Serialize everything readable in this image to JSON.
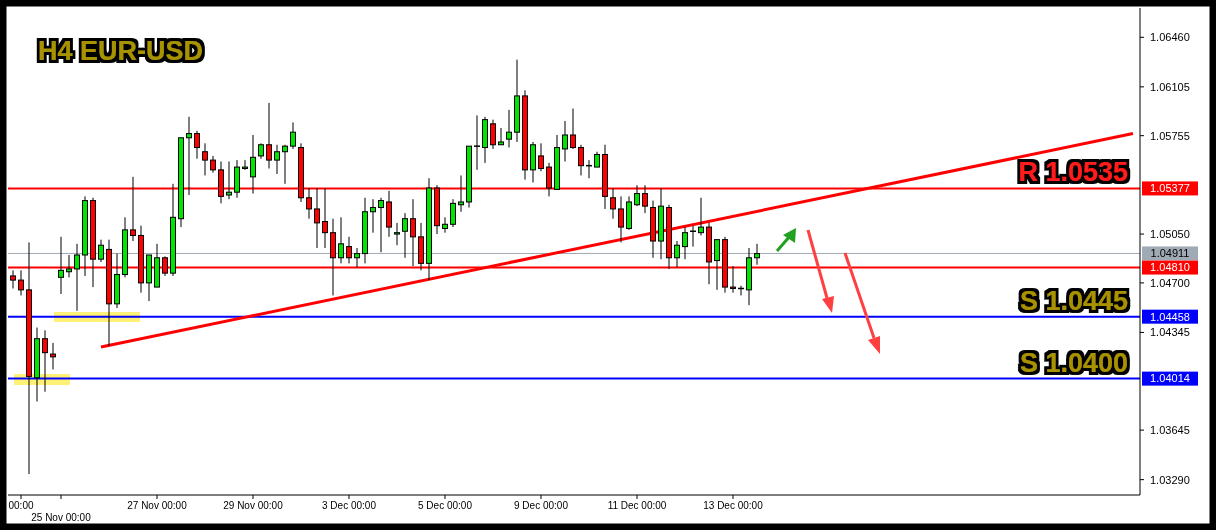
{
  "chart_data": {
    "type": "candlestick",
    "title": "H4 EUR-USD",
    "categories": [
      null,
      "00:00",
      null,
      null,
      null,
      null,
      "25 Nov 00:00",
      null,
      null,
      null,
      null,
      null,
      null,
      null,
      null,
      null,
      null,
      null,
      "27 Nov 00:00",
      null,
      null,
      null,
      null,
      null,
      null,
      null,
      null,
      null,
      null,
      null,
      "29 Nov 00:00",
      null,
      null,
      null,
      null,
      null,
      null,
      null,
      null,
      null,
      null,
      null,
      "3 Dec 00:00",
      null,
      null,
      null,
      null,
      null,
      null,
      null,
      null,
      null,
      null,
      null,
      "5 Dec 00:00",
      null,
      null,
      null,
      null,
      null,
      null,
      null,
      null,
      null,
      null,
      null,
      "9 Dec 00:00",
      null,
      null,
      null,
      null,
      null,
      null,
      null,
      null,
      null,
      null,
      null,
      "11 Dec 00:00",
      null,
      null,
      null,
      null,
      null,
      null,
      null,
      null,
      null,
      null,
      null,
      "13 Dec 00:00",
      null,
      null,
      null,
      null,
      null,
      null,
      null,
      null,
      null,
      null,
      null,
      null,
      null,
      null,
      null,
      null,
      null,
      null,
      null,
      null,
      null,
      null,
      null,
      null,
      null,
      null,
      null,
      null,
      null,
      null,
      null,
      null,
      null,
      null,
      null,
      null,
      null,
      null,
      null,
      null,
      null,
      null,
      null,
      null,
      null,
      null,
      null,
      null,
      null,
      null
    ],
    "ohlc": [
      [
        1.0475,
        1.0479,
        1.0466,
        1.0472
      ],
      [
        1.0472,
        1.0479,
        1.0461,
        1.0465
      ],
      [
        1.0465,
        1.0499,
        1.0333,
        1.0403
      ],
      [
        1.0402,
        1.0438,
        1.0385,
        1.043
      ],
      [
        1.043,
        1.0436,
        1.0392,
        1.042
      ],
      [
        1.0419,
        1.0427,
        1.0408,
        1.0417
      ],
      [
        1.0474,
        1.0503,
        1.0462,
        1.0479
      ],
      [
        1.0478,
        1.049,
        1.0474,
        1.048
      ],
      [
        1.048,
        1.0498,
        1.045,
        1.049
      ],
      [
        1.049,
        1.0532,
        1.0475,
        1.0529
      ],
      [
        1.0529,
        1.0531,
        1.0467,
        1.0487
      ],
      [
        1.0487,
        1.0501,
        1.0485,
        1.0497
      ],
      [
        1.0494,
        1.0501,
        1.0425,
        1.0455
      ],
      [
        1.0455,
        1.0491,
        1.0452,
        1.0476
      ],
      [
        1.0476,
        1.0517,
        1.0474,
        1.0508
      ],
      [
        1.0508,
        1.0546,
        1.05,
        1.0504
      ],
      [
        1.0504,
        1.0511,
        1.0463,
        1.047
      ],
      [
        1.047,
        1.049,
        1.0457,
        1.049
      ],
      [
        1.0467,
        1.0498,
        1.0467,
        1.0488
      ],
      [
        1.0488,
        1.0489,
        1.0475,
        1.0477
      ],
      [
        1.0477,
        1.0541,
        1.0475,
        1.0517
      ],
      [
        1.0516,
        1.0574,
        1.051,
        1.0574
      ],
      [
        1.0574,
        1.0589,
        1.0533,
        1.0577
      ],
      [
        1.0577,
        1.0579,
        1.0559,
        1.0567
      ],
      [
        1.0564,
        1.057,
        1.0547,
        1.0558
      ],
      [
        1.0558,
        1.0561,
        1.0549,
        1.0551
      ],
      [
        1.0551,
        1.0557,
        1.0527,
        1.0532
      ],
      [
        1.0533,
        1.0557,
        1.053,
        1.0535
      ],
      [
        1.0535,
        1.0558,
        1.0531,
        1.0553
      ],
      [
        1.0552,
        1.0558,
        1.0551,
        1.0553
      ],
      [
        1.0546,
        1.0576,
        1.0534,
        1.056
      ],
      [
        1.0561,
        1.057,
        1.0559,
        1.0569
      ],
      [
        1.0569,
        1.0599,
        1.0552,
        1.0558
      ],
      [
        1.0558,
        1.0569,
        1.0548,
        1.0564
      ],
      [
        1.0564,
        1.0569,
        1.0541,
        1.0568
      ],
      [
        1.0568,
        1.0585,
        1.0566,
        1.0578
      ],
      [
        1.0567,
        1.057,
        1.0528,
        1.0531
      ],
      [
        1.0531,
        1.0538,
        1.0516,
        1.0523
      ],
      [
        1.0523,
        1.0538,
        1.0495,
        1.0513
      ],
      [
        1.0514,
        1.0538,
        1.0495,
        1.0506
      ],
      [
        1.0506,
        1.0516,
        1.0461,
        1.0488
      ],
      [
        1.0488,
        1.0517,
        1.0484,
        1.0498
      ],
      [
        1.0496,
        1.0503,
        1.0484,
        1.0488
      ],
      [
        1.0488,
        1.0495,
        1.0481,
        1.0491
      ],
      [
        1.0491,
        1.0531,
        1.0484,
        1.0521
      ],
      [
        1.0521,
        1.053,
        1.0506,
        1.0524
      ],
      [
        1.0524,
        1.0531,
        1.0492,
        1.0529
      ],
      [
        1.0528,
        1.0536,
        1.0503,
        1.051
      ],
      [
        1.0505,
        1.0513,
        1.0497,
        1.0506
      ],
      [
        1.0507,
        1.052,
        1.0488,
        1.0516
      ],
      [
        1.0516,
        1.053,
        1.0482,
        1.0503
      ],
      [
        1.0503,
        1.0513,
        1.0479,
        1.0484
      ],
      [
        1.0484,
        1.0545,
        1.0472,
        1.0538
      ],
      [
        1.0538,
        1.054,
        1.0505,
        1.0511
      ],
      [
        1.0509,
        1.0517,
        1.0506,
        1.0512
      ],
      [
        1.0512,
        1.053,
        1.051,
        1.0527
      ],
      [
        1.0526,
        1.0547,
        1.0521,
        1.0528
      ],
      [
        1.0528,
        1.0568,
        1.0524,
        1.0568
      ],
      [
        1.0568,
        1.059,
        1.0551,
        1.0568
      ],
      [
        1.0567,
        1.0589,
        1.0556,
        1.0587
      ],
      [
        1.0584,
        1.0587,
        1.0566,
        1.0569
      ],
      [
        1.0569,
        1.0581,
        1.0569,
        1.0571
      ],
      [
        1.0573,
        1.0594,
        1.0567,
        1.0578
      ],
      [
        1.0578,
        1.063,
        1.0571,
        1.0604
      ],
      [
        1.0604,
        1.0608,
        1.0544,
        1.0551
      ],
      [
        1.0551,
        1.0571,
        1.0542,
        1.0569
      ],
      [
        1.0561,
        1.057,
        1.055,
        1.0552
      ],
      [
        1.0553,
        1.0556,
        1.0532,
        1.0538
      ],
      [
        1.0537,
        1.0576,
        1.0537,
        1.0567
      ],
      [
        1.0566,
        1.0586,
        1.0557,
        1.0576
      ],
      [
        1.0576,
        1.0595,
        1.0566,
        1.0567
      ],
      [
        1.0567,
        1.0569,
        1.0547,
        1.0554
      ],
      [
        1.0554,
        1.0558,
        1.0545,
        1.0554
      ],
      [
        1.0553,
        1.0564,
        1.0553,
        1.0562
      ],
      [
        1.0562,
        1.0569,
        1.0523,
        1.0532
      ],
      [
        1.0531,
        1.0538,
        1.0516,
        1.0523
      ],
      [
        1.0523,
        1.0532,
        1.0499,
        1.051
      ],
      [
        1.0509,
        1.0532,
        1.0508,
        1.0528
      ],
      [
        1.0526,
        1.054,
        1.0525,
        1.0534
      ],
      [
        1.0534,
        1.054,
        1.052,
        1.0525
      ],
      [
        1.0524,
        1.0529,
        1.0488,
        1.05
      ],
      [
        1.05,
        1.0538,
        1.0487,
        1.0525
      ],
      [
        1.0524,
        1.0526,
        1.048,
        1.0488
      ],
      [
        1.0488,
        1.05,
        1.0481,
        1.0497
      ],
      [
        1.0496,
        1.051,
        1.0487,
        1.0506
      ],
      [
        1.0507,
        1.0511,
        1.0496,
        1.0507
      ],
      [
        1.0506,
        1.0531,
        1.0504,
        1.051
      ],
      [
        1.051,
        1.0513,
        1.0469,
        1.0485
      ],
      [
        1.0486,
        1.0501,
        1.0465,
        1.0501
      ],
      [
        1.0501,
        1.0503,
        1.0463,
        1.0467
      ],
      [
        1.0467,
        1.0482,
        1.0463,
        1.0466
      ],
      [
        1.0466,
        1.0468,
        1.0461,
        1.0466
      ],
      [
        1.0465,
        1.0495,
        1.0454,
        1.0488
      ],
      [
        1.0488,
        1.0498,
        1.0483,
        1.0491
      ],
      null,
      null,
      null,
      null,
      null,
      null,
      null,
      null,
      null,
      null,
      null,
      null,
      null,
      null,
      null,
      null,
      null,
      null,
      null,
      null,
      null,
      null,
      null,
      null,
      null,
      null,
      null,
      null,
      null,
      null,
      null,
      null,
      null,
      null,
      null,
      null,
      null,
      null,
      null,
      null,
      null,
      null,
      null,
      null,
      null,
      null,
      null
    ],
    "series": [
      {
        "type": "line",
        "color": "#ff0000",
        "values": [
          null,
          null,
          null,
          null,
          null,
          null,
          null,
          null,
          null,
          null,
          null,
          1.0424,
          null,
          null,
          null,
          null,
          null,
          null,
          null,
          null,
          null,
          null,
          null,
          null,
          null,
          null,
          null,
          null,
          null,
          null,
          null,
          null,
          null,
          null,
          null,
          null,
          null,
          null,
          null,
          null,
          null,
          null,
          null,
          null,
          null,
          null,
          null,
          null,
          null,
          null,
          null,
          null,
          null,
          null,
          null,
          null,
          null,
          null,
          null,
          null,
          null,
          null,
          null,
          null,
          null,
          null,
          null,
          null,
          null,
          null,
          null,
          null,
          null,
          null,
          null,
          null,
          null,
          null,
          null,
          null,
          null,
          null,
          null,
          null,
          null,
          null,
          null,
          null,
          null,
          null,
          null,
          null,
          null,
          null,
          null,
          null,
          null,
          null,
          null,
          null,
          null,
          null,
          null,
          null,
          null,
          null,
          null,
          null,
          null,
          null,
          null,
          null,
          null,
          null,
          null,
          null,
          null,
          null,
          null,
          null,
          null,
          null,
          null,
          null,
          null,
          null,
          null,
          null,
          null,
          null,
          null,
          null,
          null,
          null,
          null,
          null,
          null,
          null,
          null,
          null,
          1.0577
        ]
      }
    ],
    "ylim": [
      1.0318,
      1.0667
    ],
    "yticks": [
      {
        "value": 1.0646,
        "label": "1.06460"
      },
      {
        "value": 1.06105,
        "label": "1.06105"
      },
      {
        "value": 1.05755,
        "label": "1.05755"
      },
      {
        "value": 1.0505,
        "label": "1.05050"
      },
      {
        "value": 1.047,
        "label": "1.04700"
      },
      {
        "value": 1.04345,
        "label": "1.04345"
      },
      {
        "value": 1.03645,
        "label": "1.03645"
      },
      {
        "value": 1.0329,
        "label": "1.03290"
      }
    ],
    "ref_lines": [
      {
        "axis": "y",
        "value": 1.05377,
        "label": "1.05377",
        "color": "#ff0000"
      },
      {
        "axis": "y",
        "value": 1.04911,
        "label": "1.04911",
        "color": "#a0aab4"
      },
      {
        "axis": "y",
        "value": 1.0481,
        "label": "1.04810",
        "color": "#ff0000"
      },
      {
        "axis": "y",
        "value": 1.04458,
        "label": "1.04458",
        "color": "#0000ff"
      },
      {
        "axis": "y",
        "value": 1.04014,
        "label": "1.04014",
        "color": "#0000ff"
      }
    ],
    "annotations": [
      {
        "text": "R 1.0535",
        "y": 1.05377
      },
      {
        "text": "S 1.0445",
        "y": 1.04458
      },
      {
        "text": "S 1.0400",
        "y": 1.04014
      }
    ]
  }
}
